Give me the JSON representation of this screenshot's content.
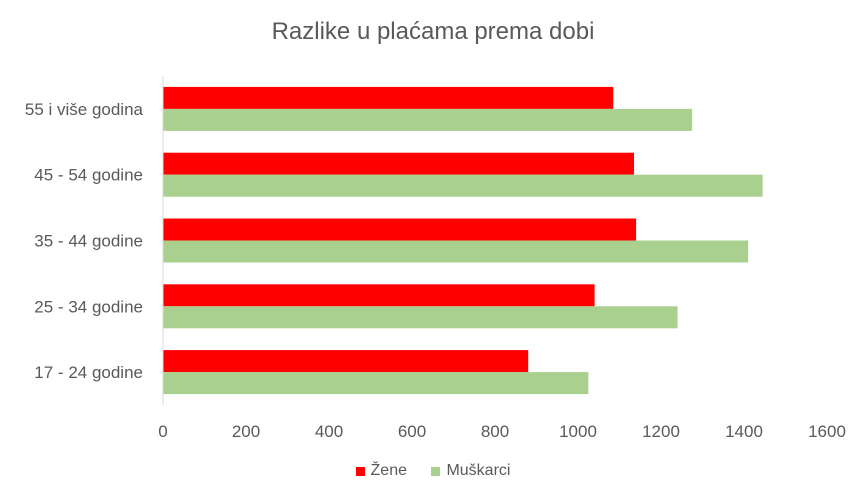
{
  "chart_data": {
    "type": "bar",
    "orientation": "horizontal",
    "title": "Razlike u plaćama prema dobi",
    "categories": [
      "17 - 24 godine",
      "25 - 34 godine",
      "35 - 44 godine",
      "45 - 54 godine",
      "55 i više godina"
    ],
    "series": [
      {
        "name": "Žene",
        "color": "#ff0000",
        "values": [
          880,
          1040,
          1140,
          1135,
          1085
        ]
      },
      {
        "name": "Muškarci",
        "color": "#a9d08e",
        "values": [
          1025,
          1240,
          1410,
          1445,
          1275
        ]
      }
    ],
    "xlim": [
      0,
      1600
    ],
    "xticks": [
      0,
      200,
      400,
      600,
      800,
      1000,
      1200,
      1400,
      1600
    ],
    "grid": false,
    "legend_position": "bottom"
  }
}
